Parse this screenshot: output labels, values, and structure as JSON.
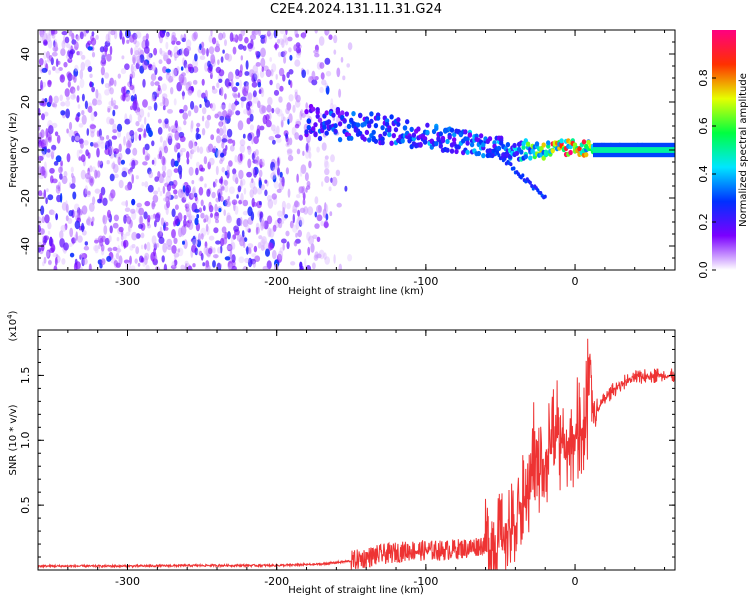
{
  "title": "C2E4.2024.131.11.31.G24",
  "chart_data": [
    {
      "type": "heatmap",
      "xlabel": "Height of straight line (km)",
      "ylabel": "Frequency (Hz)",
      "xlim": [
        -360,
        67
      ],
      "ylim": [
        -50,
        50
      ],
      "x_ticks": [
        -300,
        -200,
        -100,
        0
      ],
      "x_tick_labels": [
        "-300",
        "-200",
        "-100",
        "0"
      ],
      "y_ticks": [
        -40,
        -20,
        0,
        20,
        40
      ],
      "y_tick_labels": [
        "-40",
        "-20",
        "0",
        "20",
        "40"
      ],
      "colorbar": {
        "label": "Normalized spectral amplitude",
        "range": [
          0,
          1
        ],
        "ticks": [
          0.0,
          0.2,
          0.4,
          0.6,
          0.8
        ],
        "tick_labels": [
          "0.0",
          "0.2",
          "0.4",
          "0.6",
          "0.8"
        ],
        "colors": [
          "#ffffff",
          "#7b00ff",
          "#0030ff",
          "#00e6ff",
          "#00ff40",
          "#e6ff00",
          "#ff3000",
          "#ff0080"
        ]
      },
      "noise_region": {
        "x_range": [
          -360,
          -150
        ],
        "y_range": [
          -50,
          50
        ],
        "level": 0.15
      },
      "signal_trace": [
        {
          "x": -180,
          "y": 12,
          "amp": 0.28
        },
        {
          "x": -150,
          "y": 10,
          "amp": 0.3
        },
        {
          "x": -120,
          "y": 8,
          "amp": 0.32
        },
        {
          "x": -90,
          "y": 5,
          "amp": 0.35
        },
        {
          "x": -60,
          "y": 2,
          "amp": 0.35
        },
        {
          "x": -40,
          "y": 0,
          "amp": 0.4
        },
        {
          "x": -20,
          "y": 0,
          "amp": 0.75
        },
        {
          "x": 0,
          "y": 1,
          "amp": 0.9
        },
        {
          "x": 20,
          "y": 0.5,
          "amp": 0.5
        },
        {
          "x": 67,
          "y": 0.5,
          "amp": 0.55
        }
      ]
    },
    {
      "type": "line",
      "xlabel": "Height of straight line (km)",
      "ylabel": "SNR (10 * v/v)",
      "y_multiplier": "(x10^4)",
      "y_multiplier_base": "(x10",
      "y_multiplier_exp": "4",
      "y_multiplier_close": ")",
      "xlim": [
        -360,
        67
      ],
      "ylim": [
        0,
        18500
      ],
      "x_ticks": [
        -300,
        -200,
        -100,
        0
      ],
      "x_tick_labels": [
        "-300",
        "-200",
        "-100",
        "0"
      ],
      "y_ticks": [
        5000,
        10000,
        15000
      ],
      "y_tick_labels": [
        "0.5",
        "1.0",
        "1.5"
      ],
      "color": "#ee3333",
      "x": [
        -360,
        -300,
        -250,
        -200,
        -170,
        -150,
        -130,
        -110,
        -90,
        -70,
        -55,
        -45,
        -38,
        -32,
        -28,
        -24,
        -20,
        -15,
        -10,
        -5,
        0,
        5,
        8,
        10,
        12,
        16,
        20,
        25,
        30,
        35,
        40,
        45,
        50,
        55,
        60,
        67
      ],
      "y": [
        300,
        300,
        350,
        350,
        450,
        700,
        1200,
        1500,
        1500,
        1700,
        2200,
        2800,
        4000,
        6000,
        7000,
        7500,
        8500,
        9000,
        9500,
        9500,
        10000,
        10500,
        11000,
        16500,
        12000,
        12500,
        13200,
        13800,
        14300,
        14600,
        14800,
        14900,
        15000,
        15000,
        15000,
        14900
      ]
    }
  ]
}
